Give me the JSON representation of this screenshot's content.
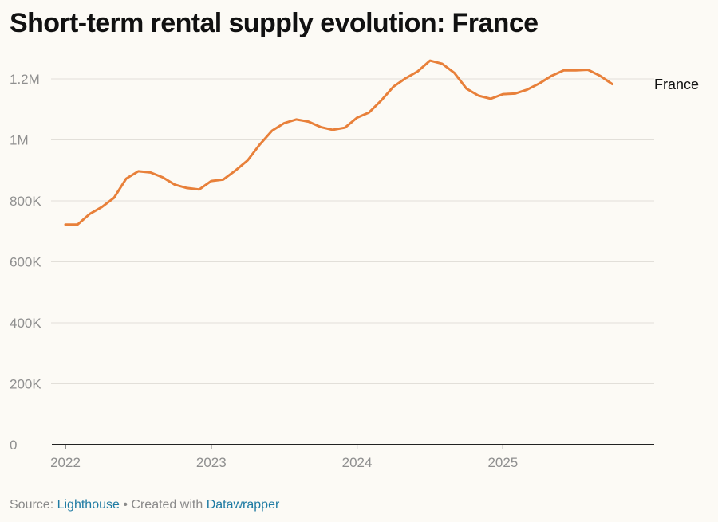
{
  "title": "Short-term rental supply evolution: France",
  "footer": {
    "source_label": "Source:",
    "source_name": "Lighthouse",
    "separator": "•",
    "created_label": "Created with",
    "tool_name": "Datawrapper"
  },
  "chart_data": {
    "type": "line",
    "title": "Short-term rental supply evolution: France",
    "xlabel": "",
    "ylabel": "",
    "xlim": [
      2022.0,
      2025.95
    ],
    "ylim": [
      0,
      1300000
    ],
    "grid": true,
    "x_ticks": [
      {
        "value": 2022,
        "label": "2022"
      },
      {
        "value": 2023,
        "label": "2023"
      },
      {
        "value": 2024,
        "label": "2024"
      },
      {
        "value": 2025,
        "label": "2025"
      }
    ],
    "y_ticks": [
      {
        "value": 0,
        "label": "0"
      },
      {
        "value": 200000,
        "label": "200K"
      },
      {
        "value": 400000,
        "label": "400K"
      },
      {
        "value": 600000,
        "label": "600K"
      },
      {
        "value": 800000,
        "label": "800K"
      },
      {
        "value": 1000000,
        "label": "1M"
      },
      {
        "value": 1200000,
        "label": "1.2M"
      }
    ],
    "series": [
      {
        "name": "France",
        "color": "#e8803a",
        "x": [
          2022.0,
          2022.083,
          2022.167,
          2022.25,
          2022.333,
          2022.417,
          2022.5,
          2022.583,
          2022.667,
          2022.75,
          2022.833,
          2022.917,
          2023.0,
          2023.083,
          2023.167,
          2023.25,
          2023.333,
          2023.417,
          2023.5,
          2023.583,
          2023.667,
          2023.75,
          2023.833,
          2023.917,
          2024.0,
          2024.083,
          2024.167,
          2024.25,
          2024.333,
          2024.417,
          2024.5,
          2024.583,
          2024.667,
          2024.75,
          2024.833,
          2024.917,
          2025.0,
          2025.083,
          2025.167,
          2025.25,
          2025.333,
          2025.417,
          2025.5,
          2025.583,
          2025.667,
          2025.75
        ],
        "values": [
          722000,
          722000,
          757000,
          780000,
          810000,
          873000,
          897000,
          893000,
          877000,
          853000,
          842000,
          837000,
          865000,
          870000,
          900000,
          933000,
          985000,
          1030000,
          1055000,
          1067000,
          1060000,
          1042000,
          1033000,
          1040000,
          1073000,
          1090000,
          1130000,
          1175000,
          1202000,
          1225000,
          1260000,
          1250000,
          1220000,
          1168000,
          1145000,
          1135000,
          1150000,
          1152000,
          1165000,
          1185000,
          1210000,
          1228000,
          1228000,
          1230000,
          1210000,
          1183000
        ]
      }
    ]
  }
}
